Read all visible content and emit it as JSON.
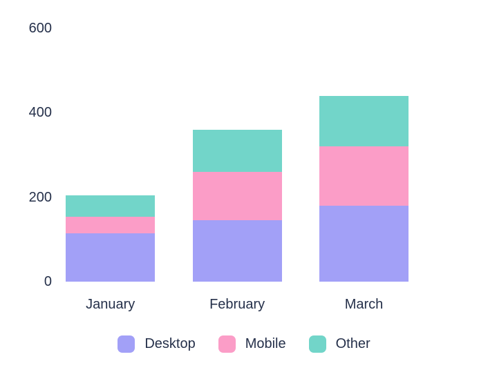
{
  "chart_data": {
    "type": "bar",
    "stacked": true,
    "title": "",
    "xlabel": "",
    "ylabel": "",
    "categories": [
      "January",
      "February",
      "March"
    ],
    "series": [
      {
        "name": "Desktop",
        "color": "#a2a0f7",
        "values": [
          115,
          145,
          180
        ]
      },
      {
        "name": "Mobile",
        "color": "#fb9dc7",
        "values": [
          38,
          115,
          140
        ]
      },
      {
        "name": "Other",
        "color": "#72d5c9",
        "values": [
          52,
          100,
          120
        ]
      }
    ],
    "totals": [
      205,
      360,
      440
    ],
    "y_ticks": [
      "600",
      "400",
      "200",
      "0"
    ],
    "y_tick_values": [
      600,
      400,
      200,
      0
    ],
    "ylim": [
      0,
      600
    ],
    "grid": "off",
    "axis_lines": "none",
    "legend_position": "bottom",
    "label_color": "#25304a",
    "background_color": "#ffffff"
  }
}
